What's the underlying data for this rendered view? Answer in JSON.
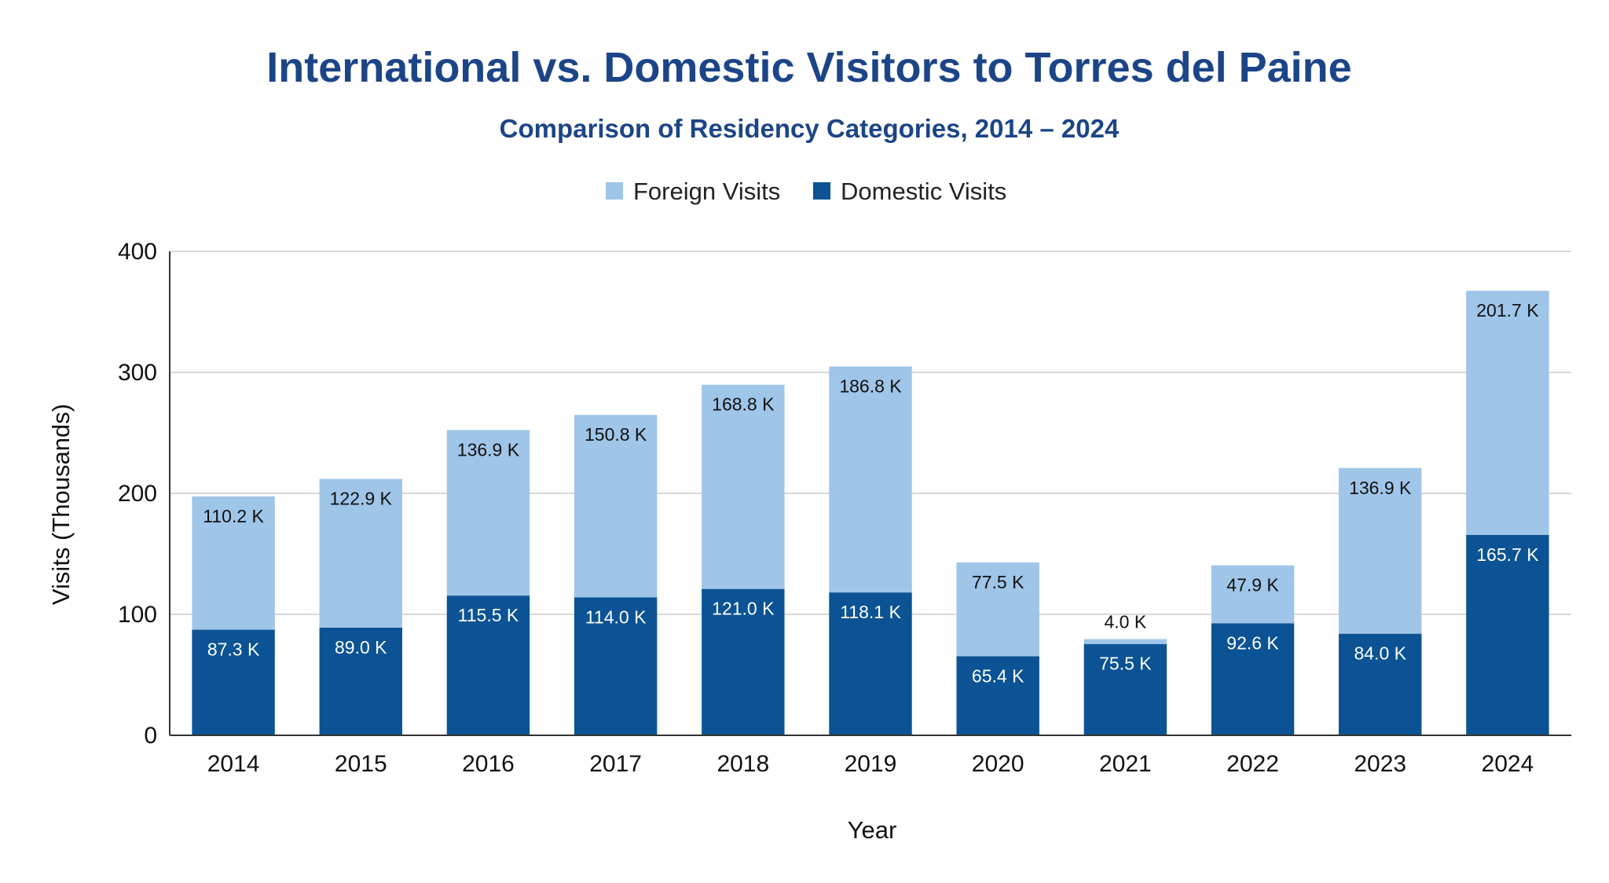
{
  "chart_data": {
    "type": "bar",
    "stacked": true,
    "title": "International vs. Domestic Visitors to Torres del Paine",
    "subtitle": "Comparison of Residency Categories, 2014 – 2024",
    "xlabel": "Year",
    "ylabel": "Visits (Thousands)",
    "ylim": [
      0,
      400
    ],
    "yticks": [
      0,
      100,
      200,
      300,
      400
    ],
    "grid": true,
    "legend_position": "top",
    "categories": [
      "2014",
      "2015",
      "2016",
      "2017",
      "2018",
      "2019",
      "2020",
      "2021",
      "2022",
      "2023",
      "2024"
    ],
    "series": [
      {
        "name": "Domestic Visits",
        "color": "#0b5394",
        "label_color": "#ffffff",
        "values": [
          87.3,
          89.0,
          115.5,
          114.0,
          121.0,
          118.1,
          65.4,
          75.5,
          92.6,
          84.0,
          165.7
        ],
        "labels": [
          "87.3 K",
          "89.0 K",
          "115.5 K",
          "114.0 K",
          "121.0 K",
          "118.1 K",
          "65.4 K",
          "75.5 K",
          "92.6 K",
          "84.0 K",
          "165.7 K"
        ]
      },
      {
        "name": "Foreign Visits",
        "color": "#9fc5e8",
        "label_color": "#111111",
        "values": [
          110.2,
          122.9,
          136.9,
          150.8,
          168.8,
          186.8,
          77.5,
          4.0,
          47.9,
          136.9,
          201.7
        ],
        "labels": [
          "110.2 K",
          "122.9 K",
          "136.9 K",
          "150.8 K",
          "168.8 K",
          "186.8 K",
          "77.5 K",
          "4.0 K",
          "47.9 K",
          "136.9 K",
          "201.7 K"
        ]
      }
    ],
    "legend_order": [
      "Foreign Visits",
      "Domestic Visits"
    ],
    "title_color": "#1c4587",
    "axis_color": "#333333",
    "grid_color": "#cccccc"
  }
}
